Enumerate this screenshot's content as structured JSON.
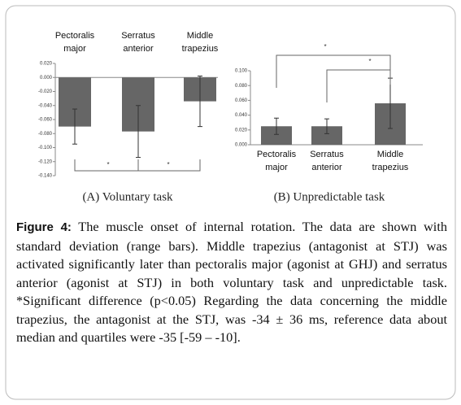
{
  "chart_data": [
    {
      "type": "bar",
      "subtitle": "(A) Voluntary task",
      "categories": [
        "Pectoralis major",
        "Serratus anterior",
        "Middle trapezius"
      ],
      "values": [
        -0.07,
        -0.077,
        -0.034
      ],
      "errors": [
        0.025,
        0.037,
        0.036
      ],
      "color": "#666666",
      "ylim": [
        -0.14,
        0.02
      ],
      "yticks": [
        {
          "value": -0.14,
          "label": "-0.140"
        },
        {
          "value": -0.12,
          "label": "-0.120"
        },
        {
          "value": -0.1,
          "label": "-0.100"
        },
        {
          "value": -0.08,
          "label": "-0.080"
        },
        {
          "value": -0.06,
          "label": "-0.060"
        },
        {
          "value": -0.04,
          "label": "-0.040"
        },
        {
          "value": -0.02,
          "label": "-0.020"
        },
        {
          "value": 0,
          "label": "0.000"
        },
        {
          "value": 0.02,
          "label": "0.020"
        }
      ],
      "annotations": [
        "*",
        "*"
      ]
    },
    {
      "type": "bar",
      "subtitle": "(B) Unpredictable task",
      "categories": [
        "Pectoralis major",
        "Serratus anterior",
        "Middle trapezius"
      ],
      "values": [
        0.025,
        0.025,
        0.056
      ],
      "errors": [
        0.011,
        0.01,
        0.034
      ],
      "color": "#666666",
      "ylim": [
        0,
        0.1
      ],
      "yticks": [
        {
          "value": 0,
          "label": "0.000"
        },
        {
          "value": 0.02,
          "label": "0.020"
        },
        {
          "value": 0.04,
          "label": "0.040"
        },
        {
          "value": 0.06,
          "label": "0.060"
        },
        {
          "value": 0.08,
          "label": "0.080"
        },
        {
          "value": 0.1,
          "label": "0.100"
        }
      ],
      "annotations": [
        "*",
        "*"
      ]
    }
  ],
  "caption": {
    "label": "Figure 4:",
    "text": "The muscle onset of internal rotation. The data are shown with standard deviation (range bars). Middle trapezius (antagonist at STJ) was activated significantly later than pectoralis major (agonist at GHJ) and serratus anterior (agonist at STJ) in both voluntary task and unpredictable task. *Significant difference (p<0.05) Regarding the data concerning the middle trapezius, the antagonist at the STJ, was -34 ± 36 ms, reference data about median and quartiles were -35 [-59 – -10]."
  }
}
